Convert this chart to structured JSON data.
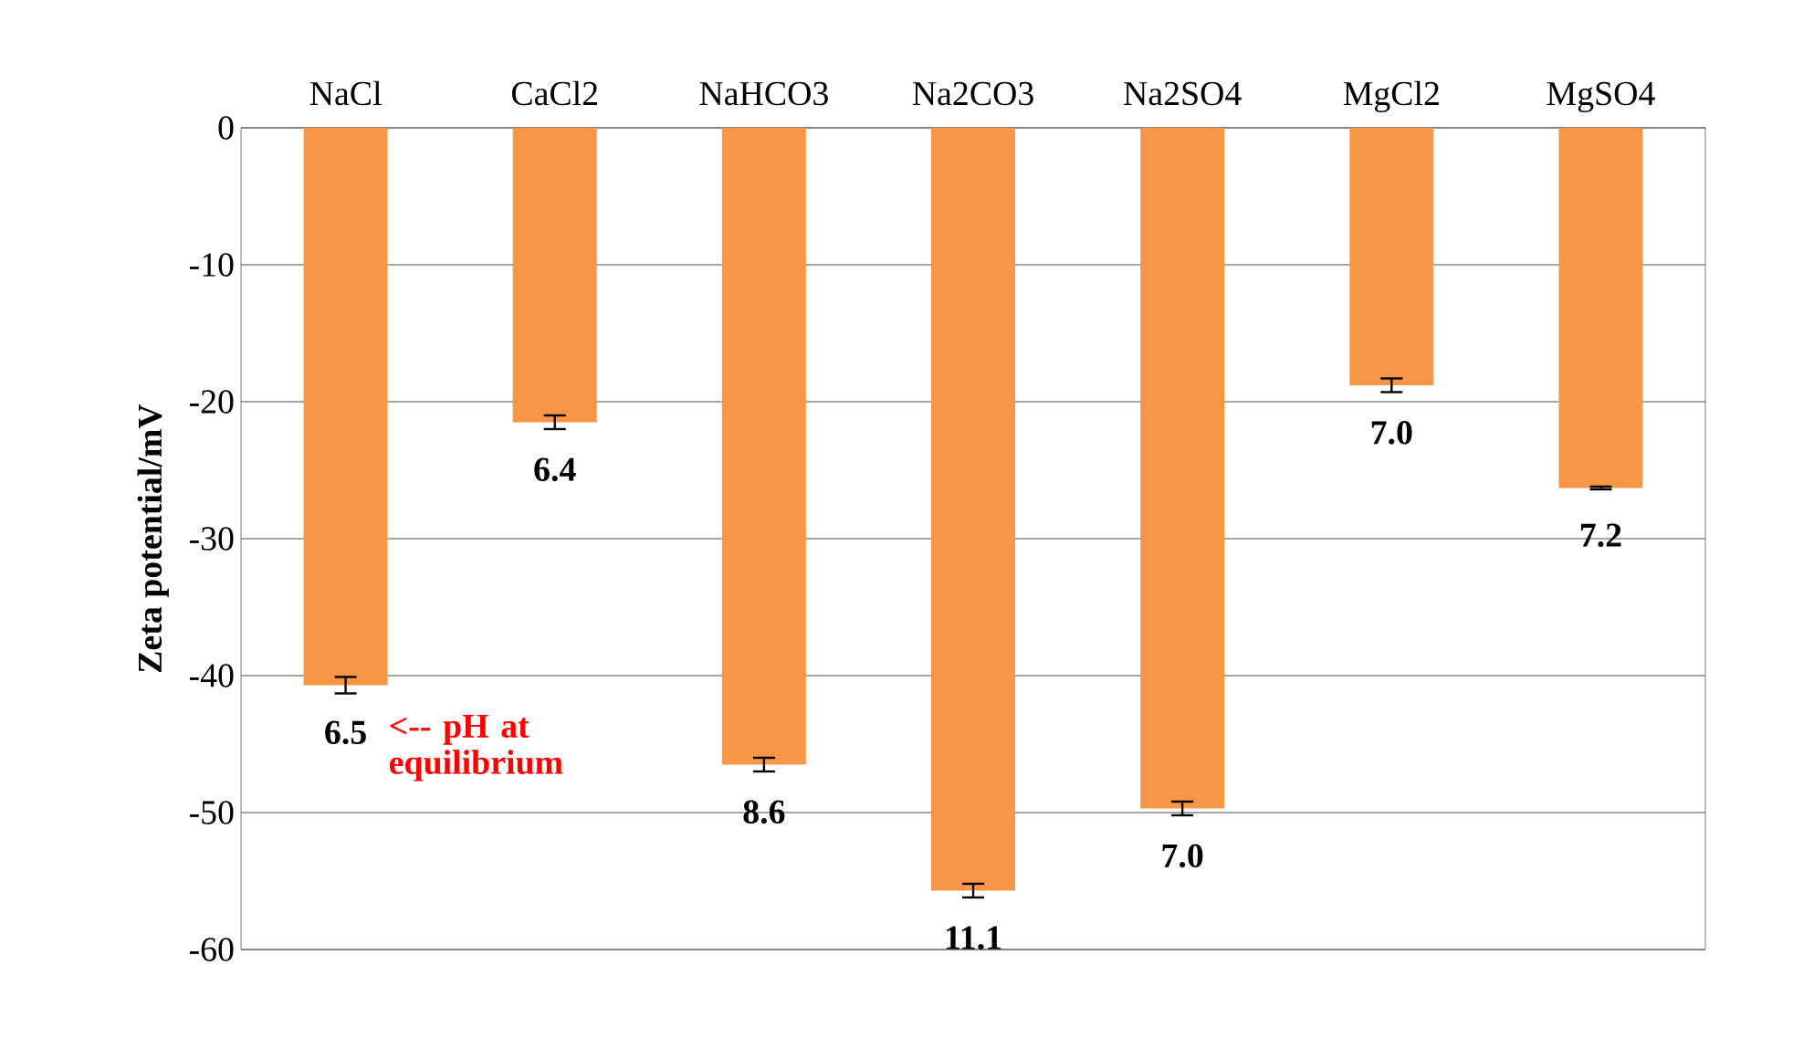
{
  "chart_data": {
    "type": "bar",
    "ylabel": "Zeta potential/mV",
    "categories": [
      "NaCl",
      "CaCl2",
      "NaHCO3",
      "Na2CO3",
      "Na2SO4",
      "MgCl2",
      "MgSO4"
    ],
    "values": [
      -40.7,
      -21.5,
      -46.5,
      -55.7,
      -49.7,
      -18.8,
      -26.3
    ],
    "errors": [
      0.6,
      0.5,
      0.5,
      0.5,
      0.5,
      0.5,
      0.1
    ],
    "color": "#f79646",
    "ylim": [
      -60,
      0
    ],
    "yticks": [
      0,
      -10,
      -20,
      -30,
      -40,
      -50,
      -60
    ],
    "grid": "y",
    "annotations": [
      {
        "text": "6.5",
        "x": "NaCl",
        "y": -40.7
      },
      {
        "text": "6.4",
        "x": "CaCl2",
        "y": -21.5
      },
      {
        "text": "8.6",
        "x": "NaHCO3",
        "y": -46.5
      },
      {
        "text": "11.1",
        "x": "Na2CO3",
        "y": -55.7
      },
      {
        "text": "7.0",
        "x": "Na2SO4",
        "y": -49.7
      },
      {
        "text": "7.0",
        "x": "MgCl2",
        "y": -18.8
      },
      {
        "text": "7.2",
        "x": "MgSO4",
        "y": -26.3
      },
      "<-- pH at equilibrium"
    ]
  }
}
